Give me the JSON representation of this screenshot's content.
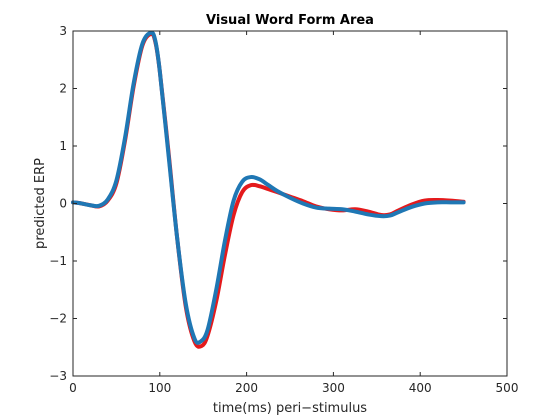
{
  "chart_data": {
    "type": "line",
    "title": "Visual Word Form Area",
    "xlabel": "time(ms) peri−stimulus",
    "ylabel": "predicted ERP",
    "xlim": [
      0,
      500
    ],
    "ylim": [
      -3,
      3
    ],
    "xticks": [
      0,
      100,
      200,
      300,
      400,
      500
    ],
    "yticks": [
      -3,
      -2,
      -1,
      0,
      1,
      2,
      3
    ],
    "grid": false,
    "legend": "none",
    "series": [
      {
        "color": "#e41a1c",
        "x": [
          0,
          10,
          20,
          30,
          40,
          50,
          60,
          70,
          80,
          90,
          95,
          100,
          110,
          120,
          130,
          140,
          148,
          155,
          165,
          175,
          185,
          195,
          205,
          215,
          225,
          235,
          250,
          265,
          280,
          295,
          310,
          325,
          340,
          355,
          365,
          375,
          390,
          405,
          420,
          435,
          450
        ],
        "y": [
          0.02,
          0.0,
          -0.03,
          -0.05,
          0.05,
          0.35,
          1.1,
          2.05,
          2.75,
          2.95,
          2.8,
          2.3,
          0.9,
          -0.6,
          -1.8,
          -2.4,
          -2.48,
          -2.3,
          -1.7,
          -0.9,
          -0.2,
          0.2,
          0.32,
          0.3,
          0.25,
          0.2,
          0.12,
          0.04,
          -0.05,
          -0.1,
          -0.12,
          -0.1,
          -0.14,
          -0.2,
          -0.19,
          -0.12,
          -0.02,
          0.05,
          0.06,
          0.05,
          0.03
        ]
      },
      {
        "color": "#1f77b4",
        "x": [
          0,
          10,
          20,
          30,
          40,
          50,
          60,
          70,
          80,
          90,
          95,
          100,
          110,
          120,
          130,
          140,
          147,
          155,
          165,
          175,
          185,
          195,
          205,
          215,
          225,
          235,
          250,
          265,
          280,
          295,
          310,
          325,
          340,
          355,
          365,
          375,
          390,
          405,
          420,
          435,
          450
        ],
        "y": [
          0.02,
          0.0,
          -0.03,
          -0.04,
          0.07,
          0.4,
          1.15,
          2.1,
          2.78,
          2.97,
          2.82,
          2.3,
          0.85,
          -0.6,
          -1.75,
          -2.35,
          -2.4,
          -2.2,
          -1.5,
          -0.65,
          0.05,
          0.38,
          0.46,
          0.42,
          0.32,
          0.22,
          0.1,
          0.0,
          -0.07,
          -0.09,
          -0.1,
          -0.14,
          -0.19,
          -0.22,
          -0.21,
          -0.15,
          -0.06,
          0.0,
          0.02,
          0.02,
          0.02
        ]
      }
    ]
  }
}
